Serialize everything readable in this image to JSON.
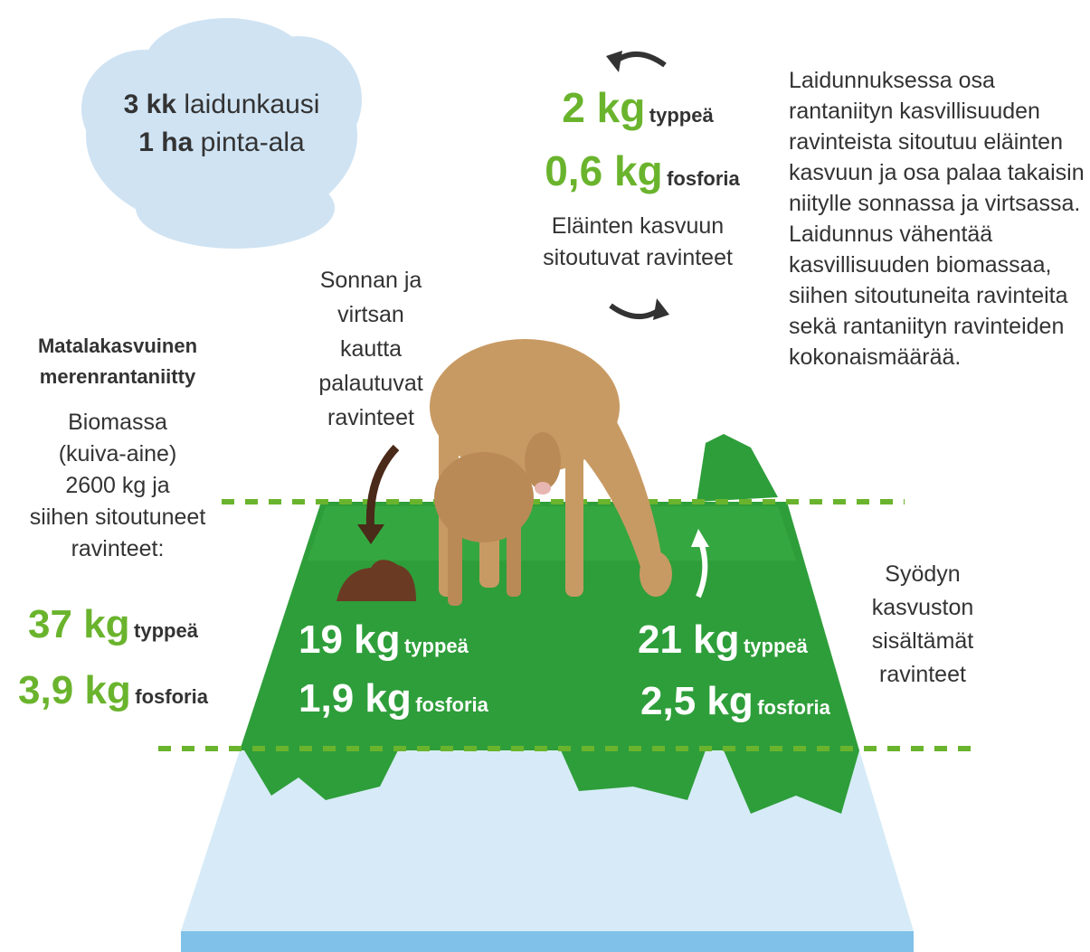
{
  "cloud": [
    {
      "bold": "3 kk",
      "text": "laidunkausi"
    },
    {
      "bold": "1 ha",
      "text": "pinta-ala"
    }
  ],
  "top_center": {
    "nitrogen": {
      "amount": "2 kg",
      "label": "typpeä"
    },
    "phosphorus": {
      "amount": "0,6 kg",
      "label": "fosforia"
    },
    "caption": [
      "Eläinten kasvuun",
      "sitoutuvat ravinteet"
    ]
  },
  "right_text": [
    "Laidunnuksessa osa",
    "rantaniityn kasvillisuuden",
    "ravinteista sitoutuu eläinten",
    "kasvuun ja osa palaa takaisin",
    "niitylle sonnassa ja virtsassa.",
    "Laidunnus vähentää",
    "kasvillisuuden biomassaa,",
    "siihen sitoutuneita ravinteita",
    "sekä rantaniityn ravinteiden",
    "kokonaismäärää."
  ],
  "left": {
    "title": [
      "Matalakasvuinen",
      "merenrantaniitty"
    ],
    "description": [
      "Biomassa",
      "(kuiva-aine)",
      "2600 kg ja",
      "siihen sitoutuneet",
      "ravinteet:"
    ],
    "nitrogen": {
      "amount": "37 kg",
      "label": "typpeä"
    },
    "phosphorus": {
      "amount": "3,9 kg",
      "label": "fosforia"
    }
  },
  "manure_label": [
    "Sonnan ja",
    "virtsan",
    "kautta",
    "palautuvat",
    "ravinteet"
  ],
  "returned": {
    "nitrogen": {
      "amount": "19 kg",
      "label": "typpeä"
    },
    "phosphorus": {
      "amount": "1,9 kg",
      "label": "fosforia"
    }
  },
  "eaten": {
    "nitrogen": {
      "amount": "21 kg",
      "label": "typpeä"
    },
    "phosphorus": {
      "amount": "2,5 kg",
      "label": "fosforia"
    }
  },
  "eaten_label": [
    "Syödyn",
    "kasvuston",
    "sisältämät",
    "ravinteet"
  ]
}
